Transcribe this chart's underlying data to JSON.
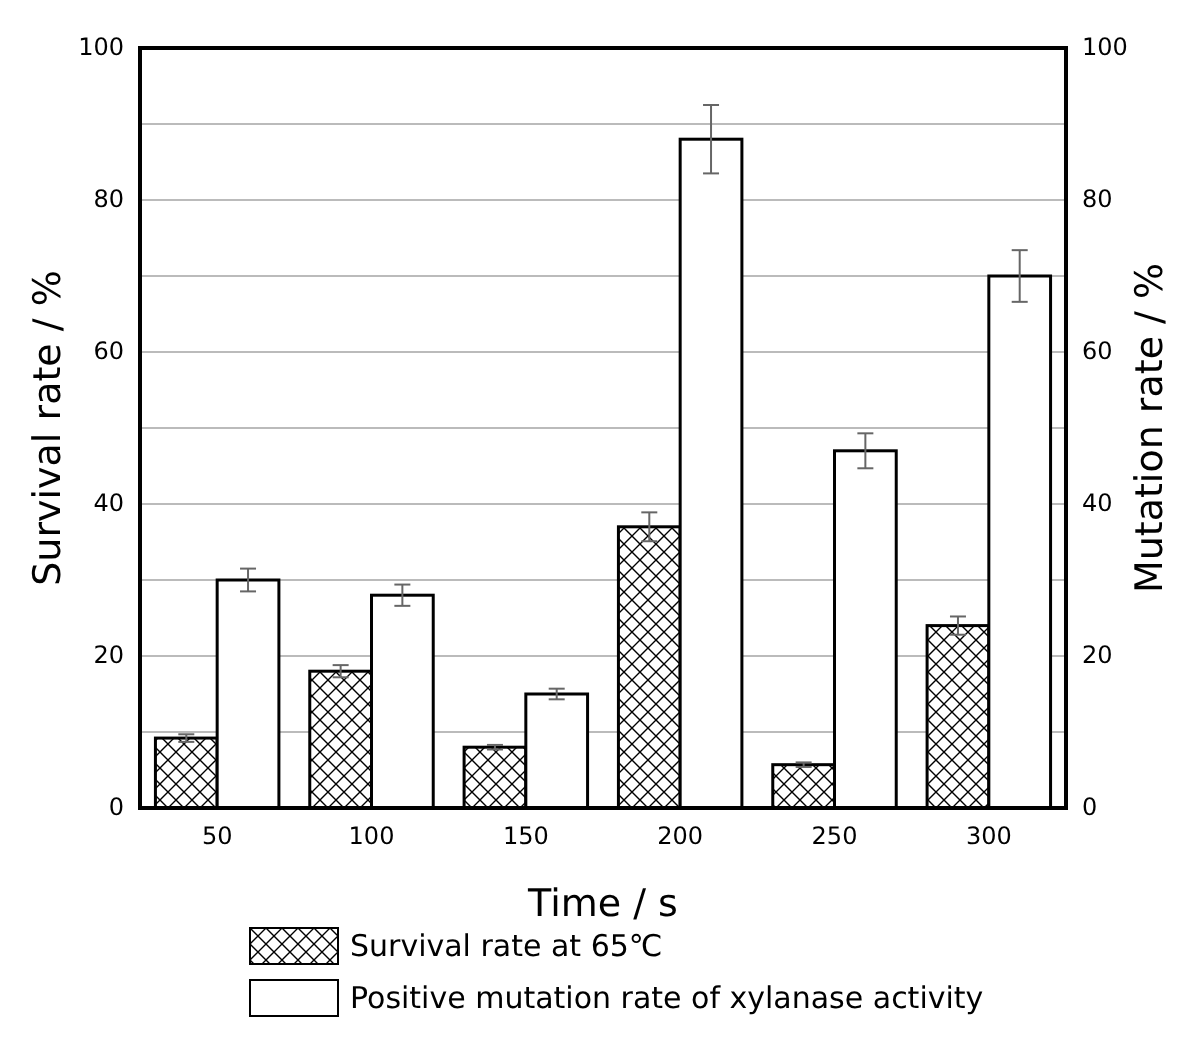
{
  "chart_data": {
    "type": "bar",
    "xlabel": "Time / s",
    "ylabel": "Survival rate / %",
    "y2label": "Mutation rate / %",
    "categories": [
      "50",
      "100",
      "150",
      "200",
      "250",
      "300"
    ],
    "series": [
      {
        "name": "Survival rate at 65℃",
        "color": "#000000",
        "values": [
          9.2,
          18,
          8,
          37,
          5.7,
          24
        ],
        "errors": [
          0.5,
          0.8,
          0.3,
          1.9,
          0.3,
          1.2
        ]
      },
      {
        "name": "Positive mutation rate of xylanase activity",
        "color": "#ffffff",
        "values": [
          30,
          28,
          15,
          88,
          47,
          70
        ],
        "errors": [
          1.5,
          1.4,
          0.7,
          4.5,
          2.3,
          3.4
        ]
      }
    ],
    "ylim": [
      0,
      100
    ],
    "yticks": [
      0,
      {
        "value": 10,
        "label": null
      },
      20,
      {
        "value": 30,
        "label": null
      },
      40,
      {
        "value": 50,
        "label": null
      },
      60,
      {
        "value": 70,
        "label": null
      },
      80,
      {
        "value": 90,
        "label": null
      },
      100
    ],
    "y2lim": [
      0,
      100
    ],
    "y2ticks": [
      0,
      20,
      40,
      60,
      80,
      100
    ],
    "grid": "y",
    "legend": "bottom"
  }
}
